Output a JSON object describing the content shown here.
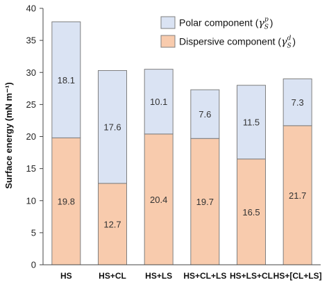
{
  "chart_data": {
    "type": "bar",
    "stacked": true,
    "ylabel": "Surface energy (mN m⁻¹)",
    "ylim": [
      0,
      40
    ],
    "yticks": [
      0,
      5,
      10,
      15,
      20,
      25,
      30,
      35,
      40
    ],
    "categories": [
      "HS",
      "HS+CL",
      "HS+LS",
      "HS+CL+LS",
      "HS+LS+CL",
      "HS+[CL+LS]"
    ],
    "series": [
      {
        "name": "Dispersive component",
        "symbol": "γ",
        "sub": "S",
        "sup": "d",
        "color": "#F8CBAD",
        "values": [
          19.8,
          12.7,
          20.4,
          19.7,
          16.5,
          21.7
        ]
      },
      {
        "name": "Polar component",
        "symbol": "γ",
        "sub": "S",
        "sup": "p",
        "color": "#DAE3F3",
        "values": [
          18.1,
          17.6,
          10.1,
          7.6,
          11.5,
          7.3
        ]
      }
    ],
    "legend_position": "top-right",
    "grid": false,
    "bar_edge_color": "#7F7F7F"
  }
}
